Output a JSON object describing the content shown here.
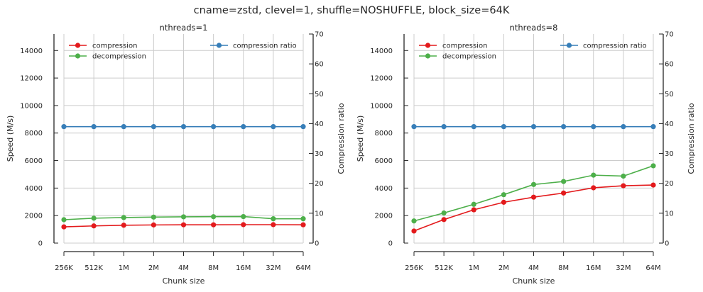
{
  "suptitle": "cname=zstd, clevel=1, shuffle=NOSHUFFLE, block_size=64K",
  "colors": {
    "compression": "#e31a1c",
    "decompression": "#4daf4a",
    "compression_ratio": "#377eb8",
    "grid": "#cccccc",
    "axis": "#262626"
  },
  "chart_data": [
    {
      "type": "line",
      "title": "nthreads=1",
      "xlabel": "Chunk size",
      "ylabel": "Speed (M/s)",
      "y2label": "Compression ratio",
      "categories": [
        "256K",
        "512K",
        "1M",
        "2M",
        "4M",
        "8M",
        "16M",
        "32M",
        "64M"
      ],
      "ylim": [
        0,
        15200
      ],
      "yticks": [
        0,
        2000,
        4000,
        6000,
        8000,
        10000,
        12000,
        14000
      ],
      "y2lim": [
        0,
        70
      ],
      "y2ticks": [
        0,
        10,
        20,
        30,
        40,
        50,
        60,
        70
      ],
      "grid": true,
      "legend_left": "top-left",
      "legend_right": "top-right",
      "series": [
        {
          "name": "compression",
          "axis": "left",
          "values": [
            1180,
            1250,
            1300,
            1320,
            1330,
            1330,
            1340,
            1340,
            1330
          ]
        },
        {
          "name": "decompression",
          "axis": "left",
          "values": [
            1700,
            1810,
            1860,
            1890,
            1910,
            1920,
            1930,
            1770,
            1770
          ]
        },
        {
          "name": "compression ratio",
          "axis": "right",
          "values": [
            39,
            39,
            39,
            39,
            39,
            39,
            39,
            39,
            39
          ]
        }
      ]
    },
    {
      "type": "line",
      "title": "nthreads=8",
      "xlabel": "Chunk size",
      "ylabel": "Speed (M/s)",
      "y2label": "Compression ratio",
      "categories": [
        "256K",
        "512K",
        "1M",
        "2M",
        "4M",
        "8M",
        "16M",
        "32M",
        "64M"
      ],
      "ylim": [
        0,
        15200
      ],
      "yticks": [
        0,
        2000,
        4000,
        6000,
        8000,
        10000,
        12000,
        14000
      ],
      "y2lim": [
        0,
        70
      ],
      "y2ticks": [
        0,
        10,
        20,
        30,
        40,
        50,
        60,
        70
      ],
      "grid": true,
      "legend_left": "top-left",
      "legend_right": "top-right",
      "series": [
        {
          "name": "compression",
          "axis": "left",
          "values": [
            880,
            1710,
            2420,
            2970,
            3340,
            3640,
            4020,
            4170,
            4220
          ]
        },
        {
          "name": "decompression",
          "axis": "left",
          "values": [
            1610,
            2190,
            2820,
            3520,
            4260,
            4480,
            4940,
            4870,
            5620
          ]
        },
        {
          "name": "compression ratio",
          "axis": "right",
          "values": [
            39,
            39,
            39,
            39,
            39,
            39,
            39,
            39,
            39
          ]
        }
      ]
    }
  ]
}
